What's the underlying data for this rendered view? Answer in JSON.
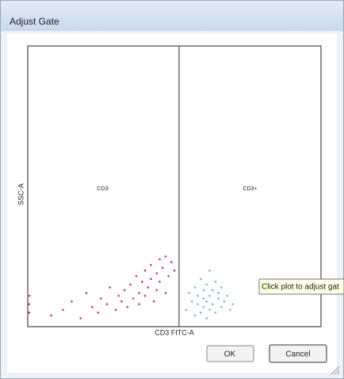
{
  "window": {
    "title": "Adjust Gate"
  },
  "chart_data": {
    "type": "scatter",
    "xlabel": "CD3 FITC-A",
    "ylabel": "SSC-A",
    "xlim": [
      0,
      100
    ],
    "ylim": [
      0,
      100
    ],
    "gate": 51.6,
    "regions": [
      "CD3-",
      "CD3+"
    ],
    "series": [
      {
        "color": "#c0308f",
        "x": [
          0.5,
          0.5,
          0.6,
          8,
          12,
          15,
          18,
          20,
          22,
          24,
          25,
          27,
          28,
          30,
          31,
          32,
          33,
          34,
          35,
          36,
          37,
          38,
          38,
          39,
          40,
          40,
          41,
          42,
          42,
          43,
          44,
          44,
          45,
          45,
          46,
          47,
          47,
          48,
          49,
          50
        ],
        "values": [
          5,
          8,
          11,
          4,
          6,
          9,
          3,
          12,
          7,
          5,
          10,
          8,
          14,
          6,
          11,
          9,
          13,
          7,
          15,
          10,
          18,
          8,
          12,
          16,
          20,
          11,
          14,
          17,
          22,
          9,
          19,
          13,
          24,
          16,
          21,
          25,
          12,
          18,
          23,
          20
        ]
      },
      {
        "color": "#6fbcd6",
        "x": [
          54,
          55,
          56,
          57,
          57,
          58,
          58,
          59,
          59,
          60,
          60,
          60,
          61,
          61,
          61,
          62,
          62,
          62,
          63,
          63,
          64,
          64,
          65,
          65,
          66,
          66,
          67,
          68,
          69,
          70
        ],
        "values": [
          6,
          12,
          9,
          4,
          14,
          8,
          11,
          5,
          17,
          7,
          10,
          13,
          3,
          9,
          15,
          6,
          11,
          20,
          8,
          13,
          5,
          16,
          10,
          12,
          7,
          14,
          9,
          11,
          6,
          8
        ]
      }
    ]
  },
  "tooltip": "Click plot to adjust gat",
  "buttons": [
    "OK",
    "Cancel"
  ]
}
